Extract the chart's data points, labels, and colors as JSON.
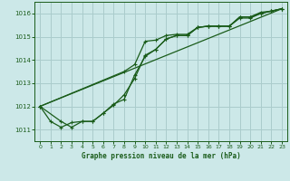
{
  "title": "Graphe pression niveau de la mer (hPa)",
  "background_color": "#cce8e8",
  "grid_color": "#aacccc",
  "line_color": "#1a5c1a",
  "xlim": [
    -0.5,
    23.5
  ],
  "ylim": [
    1010.5,
    1016.5
  ],
  "yticks": [
    1011,
    1012,
    1013,
    1014,
    1015,
    1016
  ],
  "xticks": [
    0,
    1,
    2,
    3,
    4,
    5,
    6,
    7,
    8,
    9,
    10,
    11,
    12,
    13,
    14,
    15,
    16,
    17,
    18,
    19,
    20,
    21,
    22,
    23
  ],
  "series": [
    {
      "x": [
        0,
        8,
        9,
        10,
        11,
        12,
        13,
        14,
        15,
        16,
        17,
        18,
        19,
        20,
        21,
        22,
        23
      ],
      "y": [
        1012.0,
        1013.5,
        1013.8,
        1014.8,
        1014.85,
        1015.05,
        1015.1,
        1015.1,
        1015.4,
        1015.45,
        1015.45,
        1015.45,
        1015.8,
        1015.8,
        1016.0,
        1016.1,
        1016.2
      ],
      "marker": "+",
      "lw": 0.9
    },
    {
      "x": [
        0,
        1,
        2,
        3,
        4,
        5,
        6,
        7,
        8,
        9,
        10,
        11,
        12,
        13,
        14,
        15,
        16,
        17,
        18,
        19,
        20,
        21,
        22,
        23
      ],
      "y": [
        1012.0,
        1011.35,
        1011.1,
        1011.3,
        1011.35,
        1011.35,
        1011.7,
        1012.1,
        1012.3,
        1013.35,
        1014.15,
        1014.45,
        1014.9,
        1015.05,
        1015.05,
        1015.4,
        1015.45,
        1015.45,
        1015.45,
        1015.85,
        1015.85,
        1016.0,
        1016.1,
        1016.2
      ],
      "marker": "+",
      "lw": 0.9
    },
    {
      "x": [
        0,
        2,
        3,
        4,
        5,
        6,
        7,
        8,
        9,
        10,
        11,
        12,
        13,
        14,
        15,
        16,
        17,
        18,
        19,
        20,
        21,
        22,
        23
      ],
      "y": [
        1012.0,
        1011.35,
        1011.1,
        1011.35,
        1011.35,
        1011.7,
        1012.05,
        1012.5,
        1013.2,
        1014.2,
        1014.45,
        1014.9,
        1015.05,
        1015.05,
        1015.4,
        1015.45,
        1015.45,
        1015.45,
        1015.85,
        1015.85,
        1016.05,
        1016.1,
        1016.2
      ],
      "marker": "+",
      "lw": 0.9
    },
    {
      "x": [
        0,
        23
      ],
      "y": [
        1012.0,
        1016.2
      ],
      "marker": null,
      "lw": 0.9
    }
  ]
}
